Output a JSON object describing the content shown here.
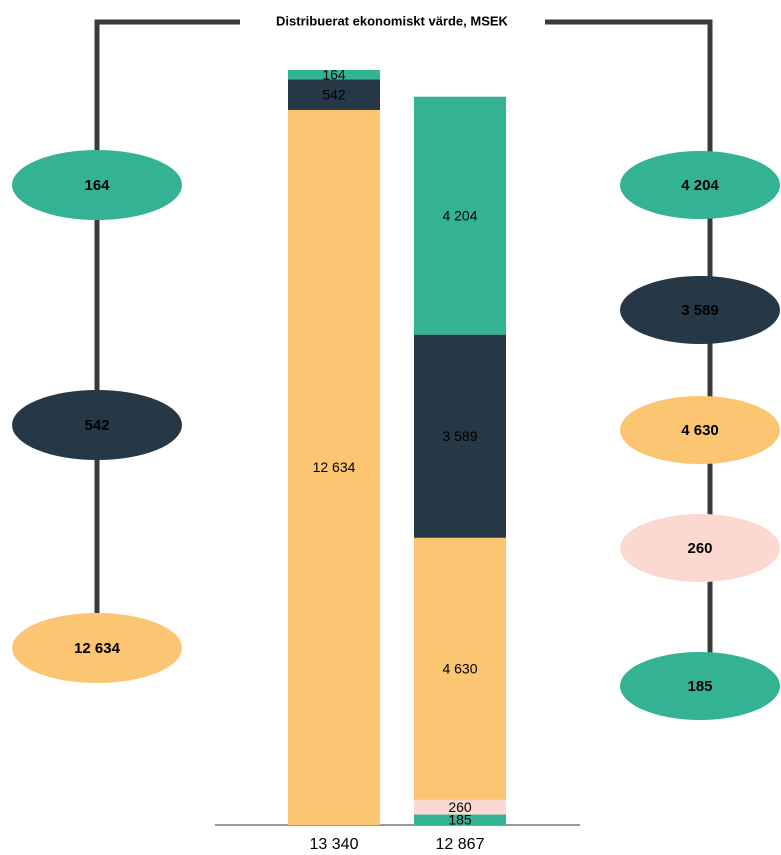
{
  "chart_data": {
    "type": "bar",
    "stacked": true,
    "title": "Distribuerat ekonomiskt värde, MSEK",
    "categories": [
      "13 340",
      "12 867"
    ],
    "series": [
      {
        "color": "#34b394",
        "values": [
          null,
          185
        ],
        "value_labels": [
          null,
          "185"
        ]
      },
      {
        "color": "#fbd9d1",
        "values": [
          null,
          260
        ],
        "value_labels": [
          null,
          "260"
        ]
      },
      {
        "color": "#fbc571",
        "values": [
          12634,
          4630
        ],
        "value_labels": [
          "12 634",
          "4 630"
        ]
      },
      {
        "color": "#263746",
        "values": [
          542,
          3589
        ],
        "value_labels": [
          "542",
          "3 589"
        ]
      },
      {
        "color": "#34b394",
        "values": [
          164,
          4204
        ],
        "value_labels": [
          "164",
          "4 204"
        ]
      }
    ]
  }
}
